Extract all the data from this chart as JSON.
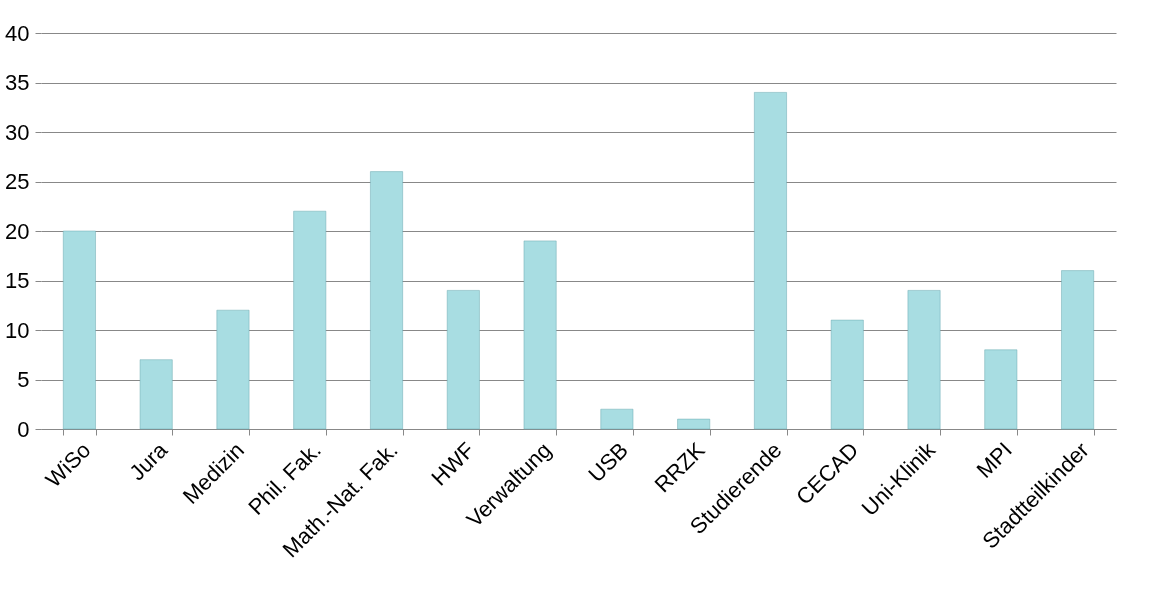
{
  "chart_data": {
    "type": "bar",
    "categories": [
      "WiSo",
      "Jura",
      "Medizin",
      "Phil. Fak.",
      "Math.-Nat. Fak.",
      "HWF",
      "Verwaltung",
      "USB",
      "RRZK",
      "Studierende",
      "CECAD",
      "Uni-Klinik",
      "MPI",
      "Stadtteilkinder"
    ],
    "values": [
      20,
      7,
      12,
      22,
      26,
      14,
      19,
      2,
      1,
      34,
      11,
      14,
      8,
      16
    ],
    "color": "#a8dde2",
    "ylim": [
      0,
      40
    ],
    "yticks": [
      0,
      5,
      10,
      15,
      20,
      25,
      30,
      35,
      40
    ],
    "grid": "y"
  }
}
